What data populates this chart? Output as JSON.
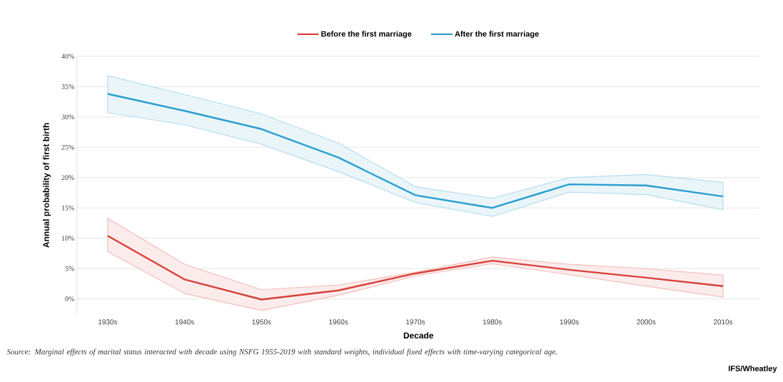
{
  "chart_data": {
    "type": "line",
    "categories": [
      "1930s",
      "1940s",
      "1950s",
      "1960s",
      "1970s",
      "1980s",
      "1990s",
      "2000s",
      "2010s"
    ],
    "series": [
      {
        "name": "Before the first marriage",
        "color": "#d9403a",
        "values": [
          10.4,
          3.2,
          -0.1,
          1.4,
          4.2,
          6.3,
          4.8,
          3.5,
          2.1
        ],
        "lower": [
          7.8,
          0.9,
          -1.9,
          0.6,
          3.8,
          5.8,
          4.0,
          2.1,
          0.3
        ],
        "upper": [
          13.3,
          5.7,
          1.5,
          2.3,
          4.4,
          6.9,
          5.7,
          5.0,
          3.9
        ]
      },
      {
        "name": "After the first marriage",
        "color": "#2a9fd0",
        "values": [
          33.8,
          31.0,
          28.0,
          23.3,
          17.1,
          15.0,
          18.9,
          18.7,
          16.9
        ],
        "lower": [
          30.7,
          28.7,
          25.5,
          21.0,
          15.9,
          13.6,
          17.6,
          17.2,
          14.7
        ],
        "upper": [
          36.8,
          33.7,
          30.5,
          25.7,
          18.5,
          16.6,
          20.0,
          20.5,
          19.2
        ]
      }
    ],
    "xlabel": "Decade",
    "ylabel": "Annual probability of first birth",
    "ylim": [
      -2.5,
      40
    ],
    "yticks": [
      {
        "value": 0,
        "label": "0%"
      },
      {
        "value": 5,
        "label": "5%"
      },
      {
        "value": 10,
        "label": "10%"
      },
      {
        "value": 15,
        "label": "15%"
      },
      {
        "value": 20,
        "label": "20%"
      },
      {
        "value": 25,
        "label": "25%"
      },
      {
        "value": 30,
        "label": "30%"
      },
      {
        "value": 35,
        "label": "35%"
      },
      {
        "value": 40,
        "label": "40%"
      }
    ],
    "grid": "y",
    "legend": "top",
    "marker": "none",
    "line_style": "solid",
    "annotations": [
      "Source: Marginal effects of marital status interacted with decade using NSFG 1955-2019 with standard weights, individual fixed effects with time-varying categorical age.",
      "IFS/Wheatley"
    ]
  }
}
